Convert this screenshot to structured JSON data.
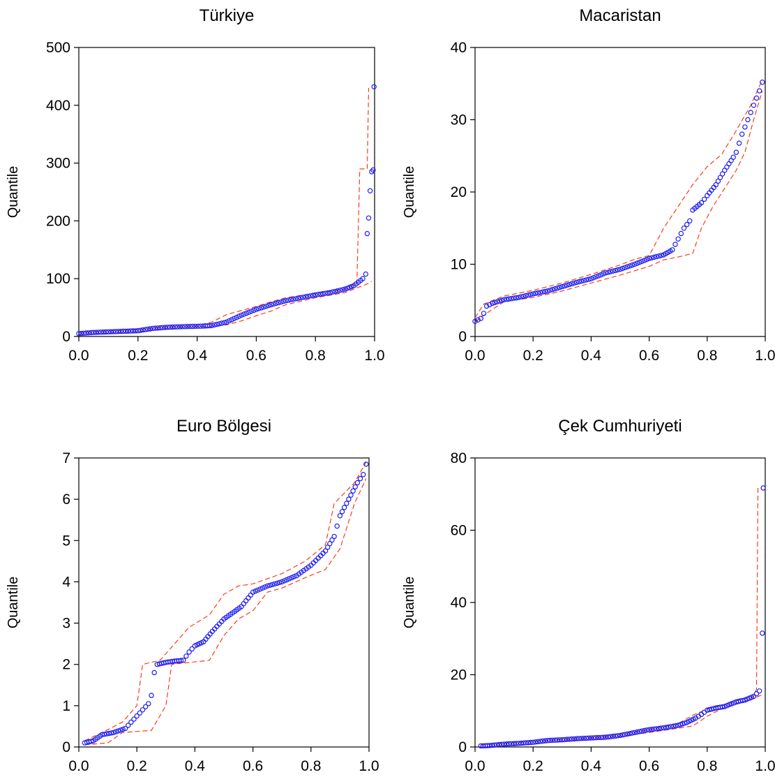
{
  "colors": {
    "points": "#1c1cf0",
    "bands": "#ff2a00",
    "axes": "#000000"
  },
  "chart_data": [
    {
      "type": "scatter",
      "title": "Türkiye",
      "ylabel": "Quantile",
      "xlim": [
        0.0,
        1.0
      ],
      "ylim": [
        0,
        500
      ],
      "xticks": [
        "0.0",
        "0.2",
        "0.4",
        "0.6",
        "0.8",
        "1.0"
      ],
      "yticks": [
        "0",
        "100",
        "200",
        "300",
        "400",
        "500"
      ],
      "curve": [
        [
          0.0,
          5
        ],
        [
          0.05,
          7
        ],
        [
          0.1,
          8
        ],
        [
          0.2,
          10
        ],
        [
          0.25,
          14
        ],
        [
          0.3,
          16
        ],
        [
          0.35,
          17
        ],
        [
          0.42,
          18
        ],
        [
          0.45,
          19
        ],
        [
          0.5,
          25
        ],
        [
          0.55,
          37
        ],
        [
          0.6,
          47
        ],
        [
          0.65,
          55
        ],
        [
          0.7,
          62
        ],
        [
          0.75,
          67
        ],
        [
          0.8,
          72
        ],
        [
          0.85,
          76
        ],
        [
          0.9,
          82
        ],
        [
          0.93,
          88
        ],
        [
          0.96,
          100
        ],
        [
          0.97,
          108
        ]
      ],
      "tail": [
        [
          0.975,
          178
        ],
        [
          0.98,
          205
        ],
        [
          0.985,
          252
        ],
        [
          0.99,
          285
        ],
        [
          0.995,
          288
        ],
        [
          0.998,
          432
        ]
      ],
      "lower": [
        [
          0.0,
          4
        ],
        [
          0.2,
          8
        ],
        [
          0.3,
          14
        ],
        [
          0.44,
          18
        ],
        [
          0.5,
          20
        ],
        [
          0.55,
          27
        ],
        [
          0.6,
          36
        ],
        [
          0.65,
          44
        ],
        [
          0.7,
          55
        ],
        [
          0.8,
          67
        ],
        [
          0.9,
          76
        ],
        [
          0.95,
          86
        ],
        [
          0.98,
          92
        ],
        [
          0.99,
          95
        ]
      ],
      "upper": [
        [
          0.0,
          7
        ],
        [
          0.2,
          12
        ],
        [
          0.3,
          17
        ],
        [
          0.4,
          19
        ],
        [
          0.45,
          25
        ],
        [
          0.5,
          38
        ],
        [
          0.55,
          45
        ],
        [
          0.6,
          52
        ],
        [
          0.65,
          60
        ],
        [
          0.7,
          67
        ],
        [
          0.8,
          75
        ],
        [
          0.9,
          82
        ],
        [
          0.94,
          92
        ],
        [
          0.95,
          290
        ],
        [
          0.975,
          290
        ],
        [
          0.98,
          430
        ]
      ]
    },
    {
      "type": "scatter",
      "title": "Macaristan",
      "ylabel": "Quantile",
      "xlim": [
        0.0,
        1.0
      ],
      "ylim": [
        0,
        40
      ],
      "xticks": [
        "0.0",
        "0.2",
        "0.4",
        "0.6",
        "0.8",
        "1.0"
      ],
      "yticks": [
        "0",
        "10",
        "20",
        "30",
        "40"
      ],
      "curve": [
        [
          0.0,
          2.1
        ],
        [
          0.02,
          2.5
        ],
        [
          0.03,
          3.2
        ],
        [
          0.04,
          4.2
        ],
        [
          0.06,
          4.6
        ],
        [
          0.1,
          5.1
        ],
        [
          0.15,
          5.4
        ],
        [
          0.2,
          5.9
        ],
        [
          0.25,
          6.3
        ],
        [
          0.3,
          6.9
        ],
        [
          0.35,
          7.5
        ],
        [
          0.4,
          8.0
        ],
        [
          0.45,
          8.8
        ],
        [
          0.5,
          9.3
        ],
        [
          0.55,
          10.0
        ],
        [
          0.6,
          10.8
        ],
        [
          0.65,
          11.3
        ],
        [
          0.68,
          12.0
        ],
        [
          0.7,
          13.5
        ],
        [
          0.72,
          15.0
        ],
        [
          0.74,
          16.0
        ],
        [
          0.75,
          17.5
        ],
        [
          0.78,
          18.5
        ],
        [
          0.8,
          19.5
        ],
        [
          0.83,
          21
        ],
        [
          0.86,
          23
        ],
        [
          0.89,
          24.8
        ],
        [
          0.9,
          25.5
        ],
        [
          0.92,
          28
        ],
        [
          0.94,
          30
        ],
        [
          0.96,
          32
        ],
        [
          0.98,
          34
        ],
        [
          0.99,
          35.2
        ]
      ],
      "lower": [
        [
          0.0,
          2
        ],
        [
          0.05,
          3.5
        ],
        [
          0.1,
          4.8
        ],
        [
          0.2,
          5.4
        ],
        [
          0.3,
          6.3
        ],
        [
          0.4,
          7.4
        ],
        [
          0.5,
          8.5
        ],
        [
          0.6,
          9.7
        ],
        [
          0.65,
          10.6
        ],
        [
          0.7,
          11.0
        ],
        [
          0.75,
          11.5
        ],
        [
          0.78,
          15
        ],
        [
          0.82,
          18
        ],
        [
          0.86,
          20.5
        ],
        [
          0.9,
          23
        ],
        [
          0.93,
          25.5
        ],
        [
          0.96,
          30
        ],
        [
          0.99,
          34
        ]
      ],
      "upper": [
        [
          0.0,
          2.6
        ],
        [
          0.03,
          4.5
        ],
        [
          0.1,
          5.6
        ],
        [
          0.2,
          6.4
        ],
        [
          0.3,
          7.4
        ],
        [
          0.4,
          8.6
        ],
        [
          0.5,
          9.9
        ],
        [
          0.55,
          10.7
        ],
        [
          0.6,
          11.2
        ],
        [
          0.65,
          15
        ],
        [
          0.7,
          18
        ],
        [
          0.75,
          21
        ],
        [
          0.8,
          23.5
        ],
        [
          0.85,
          25.2
        ],
        [
          0.9,
          28.5
        ],
        [
          0.95,
          32
        ],
        [
          0.99,
          35.5
        ]
      ]
    },
    {
      "type": "scatter",
      "title": "Euro Bölgesi",
      "ylabel": "Quantile",
      "xlim": [
        0.0,
        1.0
      ],
      "ylim": [
        0,
        7
      ],
      "xticks": [
        "0.0",
        "0.2",
        "0.4",
        "0.6",
        "0.8",
        "1.0"
      ],
      "yticks": [
        "0",
        "1",
        "2",
        "3",
        "4",
        "5",
        "6",
        "7"
      ],
      "curve": [
        [
          0.02,
          0.1
        ],
        [
          0.05,
          0.15
        ],
        [
          0.08,
          0.3
        ],
        [
          0.12,
          0.35
        ],
        [
          0.16,
          0.45
        ],
        [
          0.18,
          0.6
        ],
        [
          0.2,
          0.75
        ],
        [
          0.22,
          0.9
        ],
        [
          0.24,
          1.05
        ],
        [
          0.25,
          1.25
        ],
        [
          0.26,
          1.8
        ],
        [
          0.27,
          2.0
        ],
        [
          0.3,
          2.05
        ],
        [
          0.33,
          2.08
        ],
        [
          0.36,
          2.1
        ],
        [
          0.38,
          2.3
        ],
        [
          0.4,
          2.45
        ],
        [
          0.43,
          2.55
        ],
        [
          0.46,
          2.8
        ],
        [
          0.5,
          3.1
        ],
        [
          0.53,
          3.25
        ],
        [
          0.56,
          3.4
        ],
        [
          0.6,
          3.75
        ],
        [
          0.65,
          3.9
        ],
        [
          0.7,
          4.0
        ],
        [
          0.75,
          4.15
        ],
        [
          0.8,
          4.4
        ],
        [
          0.85,
          4.75
        ],
        [
          0.88,
          5.1
        ],
        [
          0.9,
          5.6
        ],
        [
          0.93,
          6.0
        ],
        [
          0.96,
          6.4
        ],
        [
          0.98,
          6.6
        ],
        [
          0.99,
          6.85
        ]
      ],
      "lower": [
        [
          0.02,
          0.05
        ],
        [
          0.1,
          0.1
        ],
        [
          0.15,
          0.35
        ],
        [
          0.25,
          0.4
        ],
        [
          0.3,
          1.0
        ],
        [
          0.32,
          2.0
        ],
        [
          0.45,
          2.1
        ],
        [
          0.5,
          2.7
        ],
        [
          0.55,
          3.1
        ],
        [
          0.6,
          3.3
        ],
        [
          0.65,
          3.75
        ],
        [
          0.7,
          3.85
        ],
        [
          0.78,
          4.1
        ],
        [
          0.85,
          4.3
        ],
        [
          0.9,
          4.8
        ],
        [
          0.95,
          5.9
        ],
        [
          0.99,
          6.5
        ]
      ],
      "upper": [
        [
          0.02,
          0.15
        ],
        [
          0.08,
          0.35
        ],
        [
          0.15,
          0.6
        ],
        [
          0.2,
          1.0
        ],
        [
          0.22,
          2.0
        ],
        [
          0.28,
          2.1
        ],
        [
          0.33,
          2.5
        ],
        [
          0.38,
          2.9
        ],
        [
          0.45,
          3.2
        ],
        [
          0.5,
          3.7
        ],
        [
          0.55,
          3.9
        ],
        [
          0.6,
          3.95
        ],
        [
          0.7,
          4.2
        ],
        [
          0.78,
          4.5
        ],
        [
          0.85,
          4.9
        ],
        [
          0.88,
          5.9
        ],
        [
          0.95,
          6.4
        ],
        [
          0.99,
          6.9
        ]
      ]
    },
    {
      "type": "scatter",
      "title": "Çek Cumhuriyeti",
      "ylabel": "Quantile",
      "xlim": [
        0.0,
        1.0
      ],
      "ylim": [
        0,
        80
      ],
      "xticks": [
        "0.0",
        "0.2",
        "0.4",
        "0.6",
        "0.8",
        "1.0"
      ],
      "yticks": [
        "0",
        "20",
        "40",
        "60",
        "80"
      ],
      "curve": [
        [
          0.02,
          0.3
        ],
        [
          0.05,
          0.4
        ],
        [
          0.1,
          0.8
        ],
        [
          0.15,
          1.0
        ],
        [
          0.2,
          1.3
        ],
        [
          0.25,
          1.8
        ],
        [
          0.3,
          2.0
        ],
        [
          0.35,
          2.3
        ],
        [
          0.4,
          2.5
        ],
        [
          0.45,
          2.7
        ],
        [
          0.5,
          3.2
        ],
        [
          0.55,
          4.0
        ],
        [
          0.6,
          4.8
        ],
        [
          0.65,
          5.3
        ],
        [
          0.7,
          6.0
        ],
        [
          0.73,
          6.8
        ],
        [
          0.76,
          8.0
        ],
        [
          0.78,
          9.0
        ],
        [
          0.8,
          10.2
        ],
        [
          0.83,
          10.8
        ],
        [
          0.86,
          11.2
        ],
        [
          0.9,
          12.5
        ],
        [
          0.93,
          13.0
        ],
        [
          0.96,
          14.0
        ],
        [
          0.98,
          15.5
        ]
      ],
      "tail": [
        [
          0.99,
          31.5
        ],
        [
          0.993,
          71.7
        ]
      ],
      "lower": [
        [
          0.02,
          0.0
        ],
        [
          0.1,
          0.3
        ],
        [
          0.2,
          0.8
        ],
        [
          0.3,
          1.6
        ],
        [
          0.4,
          2.3
        ],
        [
          0.5,
          3.0
        ],
        [
          0.6,
          4.0
        ],
        [
          0.7,
          5.2
        ],
        [
          0.75,
          5.8
        ],
        [
          0.8,
          8.5
        ],
        [
          0.85,
          10.6
        ],
        [
          0.9,
          11.8
        ],
        [
          0.95,
          13.0
        ],
        [
          0.99,
          14.5
        ]
      ],
      "upper": [
        [
          0.02,
          0.5
        ],
        [
          0.1,
          1.0
        ],
        [
          0.2,
          1.5
        ],
        [
          0.3,
          2.1
        ],
        [
          0.4,
          2.6
        ],
        [
          0.5,
          3.5
        ],
        [
          0.6,
          4.8
        ],
        [
          0.7,
          6.5
        ],
        [
          0.75,
          8.8
        ],
        [
          0.8,
          10.5
        ],
        [
          0.85,
          11.5
        ],
        [
          0.9,
          12.8
        ],
        [
          0.96,
          14.0
        ],
        [
          0.97,
          16
        ],
        [
          0.975,
          71.7
        ]
      ]
    }
  ]
}
